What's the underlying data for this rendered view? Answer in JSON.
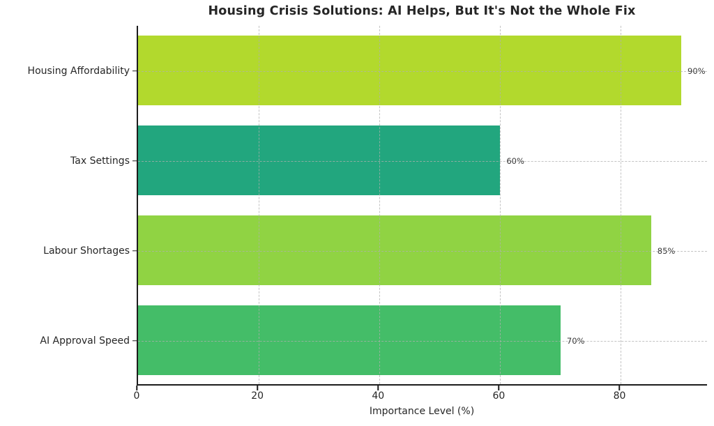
{
  "chart_data": {
    "type": "bar",
    "orientation": "horizontal",
    "title": "Housing Crisis Solutions: AI Helps, But It's Not the Whole Fix",
    "xlabel": "Importance Level (%)",
    "ylabel": "",
    "categories": [
      "Housing Affordability",
      "Tax Settings",
      "Labour Shortages",
      "AI Approval Speed"
    ],
    "values": [
      90,
      60,
      85,
      70
    ],
    "value_labels": [
      "90%",
      "60%",
      "85%",
      "70%"
    ],
    "bar_colors": [
      "#b2d92d",
      "#22a67e",
      "#90d343",
      "#44bd68"
    ],
    "xticks": [
      0,
      20,
      40,
      60,
      80
    ],
    "xtick_labels": [
      "0",
      "20",
      "40",
      "60",
      "80"
    ],
    "xlim": [
      0,
      94.5
    ],
    "grid": "dashed, vertical at x-ticks and horizontal at bar centers",
    "legend": "none",
    "colors": {
      "background": "#ffffff",
      "axis": "#1c1c1c",
      "text": "#262626",
      "grid": "#afafaf"
    }
  }
}
